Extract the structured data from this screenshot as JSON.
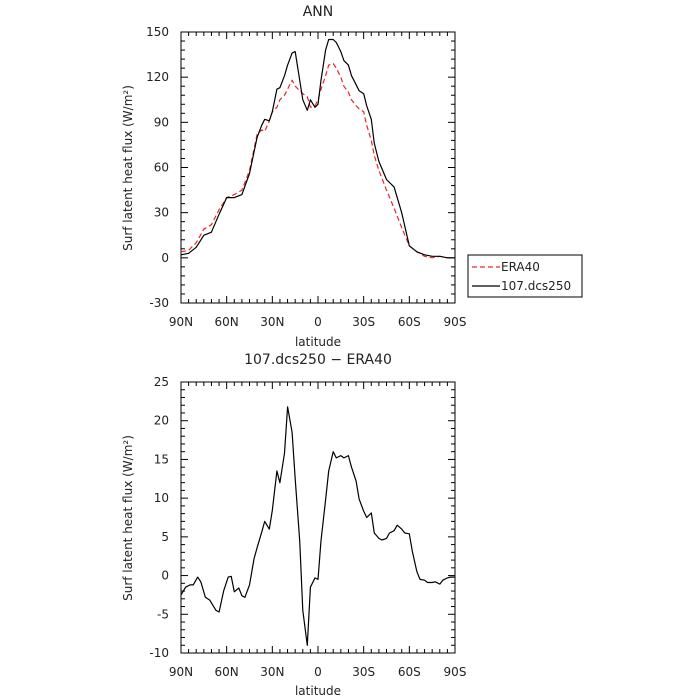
{
  "chart_data": [
    {
      "type": "line",
      "title": "ANN",
      "xlabel": "latitude",
      "ylabel": "Surf latent heat flux (W/m²)",
      "xlim": [
        90,
        -90
      ],
      "ylim": [
        -30,
        150
      ],
      "x_ticks": [
        90,
        60,
        30,
        0,
        -30,
        -60,
        -90
      ],
      "x_tick_labels": [
        "90N",
        "60N",
        "30N",
        "0",
        "30S",
        "60S",
        "90S"
      ],
      "y_ticks": [
        -30,
        0,
        30,
        60,
        90,
        120,
        150
      ],
      "legend": {
        "placement": "right"
      },
      "series": [
        {
          "name": "ERA40",
          "color": "#e8262a",
          "dash": "dashed",
          "x": [
            90,
            85,
            80,
            75,
            70,
            65,
            60,
            55,
            50,
            45,
            40,
            37,
            35,
            32,
            30,
            27,
            25,
            22,
            20,
            17,
            15,
            12,
            10,
            7,
            5,
            2,
            0,
            -2,
            -5,
            -7,
            -10,
            -12,
            -15,
            -17,
            -20,
            -22,
            -25,
            -27,
            -30,
            -32,
            -35,
            -37,
            -40,
            -45,
            -50,
            -55,
            -60,
            -65,
            -70,
            -75,
            -80,
            -85,
            -90
          ],
          "y": [
            4,
            5,
            10,
            19,
            22,
            32,
            40,
            42,
            45,
            58,
            82,
            85,
            84,
            91,
            97,
            100,
            105,
            108,
            112,
            118,
            114,
            111,
            109,
            107,
            100,
            101,
            105,
            112,
            121,
            128,
            129,
            126,
            120,
            114,
            110,
            105,
            101,
            99,
            97,
            88,
            78,
            68,
            58,
            45,
            33,
            20,
            8,
            4,
            1,
            0,
            1,
            0,
            0
          ]
        },
        {
          "name": "107.dcs250",
          "color": "#000000",
          "dash": "solid",
          "x": [
            90,
            85,
            80,
            75,
            70,
            65,
            60,
            55,
            50,
            45,
            40,
            37,
            35,
            32,
            30,
            27,
            25,
            22,
            20,
            17,
            15,
            12,
            10,
            7,
            5,
            2,
            0,
            -2,
            -5,
            -7,
            -10,
            -12,
            -15,
            -17,
            -20,
            -22,
            -25,
            -27,
            -30,
            -32,
            -35,
            -37,
            -40,
            -45,
            -50,
            -55,
            -60,
            -65,
            -70,
            -75,
            -80,
            -85,
            -90
          ],
          "y": [
            2,
            3,
            7,
            15,
            17,
            29,
            40,
            40,
            42,
            56,
            80,
            88,
            92,
            91,
            97,
            112,
            113,
            121,
            128,
            136,
            137,
            118,
            105,
            98,
            105,
            100,
            102,
            118,
            138,
            145,
            145,
            143,
            137,
            131,
            128,
            121,
            115,
            111,
            109,
            101,
            92,
            76,
            64,
            52,
            47,
            30,
            8,
            4,
            2,
            1,
            1,
            0,
            0
          ]
        }
      ]
    },
    {
      "type": "line",
      "title": "107.dcs250 − ERA40",
      "xlabel": "latitude",
      "ylabel": "Surf latent heat flux (W/m²)",
      "xlim": [
        90,
        -90
      ],
      "ylim": [
        -10,
        25
      ],
      "x_ticks": [
        90,
        60,
        30,
        0,
        -30,
        -60,
        -90
      ],
      "x_tick_labels": [
        "90N",
        "60N",
        "30N",
        "0",
        "30S",
        "60S",
        "90S"
      ],
      "y_ticks": [
        -10,
        -5,
        0,
        5,
        10,
        15,
        20,
        25
      ],
      "series": [
        {
          "color": "#000000",
          "dash": "solid",
          "x": [
            90,
            87,
            84,
            82,
            79,
            77,
            74,
            71,
            67,
            65,
            62,
            59,
            57,
            55,
            52,
            50,
            48,
            45,
            42,
            40,
            37,
            35,
            32,
            30,
            27,
            25,
            22,
            20,
            17,
            15,
            12,
            10,
            7,
            5,
            2,
            0,
            -2,
            -5,
            -7,
            -10,
            -12,
            -15,
            -17,
            -20,
            -22,
            -25,
            -27,
            -30,
            -32,
            -35,
            -37,
            -40,
            -42,
            -45,
            -47,
            -50,
            -52,
            -55,
            -57,
            -60,
            -62,
            -65,
            -67,
            -70,
            -72,
            -75,
            -77,
            -80,
            -82,
            -85,
            -87,
            -90
          ],
          "y": [
            -2.5,
            -1.5,
            -1.2,
            -1.2,
            -0.2,
            -0.8,
            -2.8,
            -3.2,
            -4.5,
            -4.7,
            -2,
            -0.2,
            -0.1,
            -2.1,
            -1.6,
            -2.6,
            -2.8,
            -1.2,
            2.2,
            3.6,
            5.6,
            7,
            6,
            8.4,
            13.5,
            12,
            15.8,
            21.8,
            18.5,
            12.5,
            4.5,
            -4.5,
            -9,
            -1.5,
            -0.3,
            -0.5,
            4.5,
            9.8,
            13.5,
            16,
            15.2,
            15.5,
            15.2,
            15.5,
            14,
            12.2,
            9.9,
            8.3,
            7.5,
            8.1,
            5.5,
            4.8,
            4.6,
            4.8,
            5.5,
            5.8,
            6.5,
            6,
            5.5,
            5.4,
            3.1,
            0.5,
            -0.5,
            -0.6,
            -0.9,
            -0.9,
            -0.8,
            -1.1,
            -0.6,
            -0.3,
            -0.2,
            -0.2
          ]
        }
      ]
    }
  ]
}
